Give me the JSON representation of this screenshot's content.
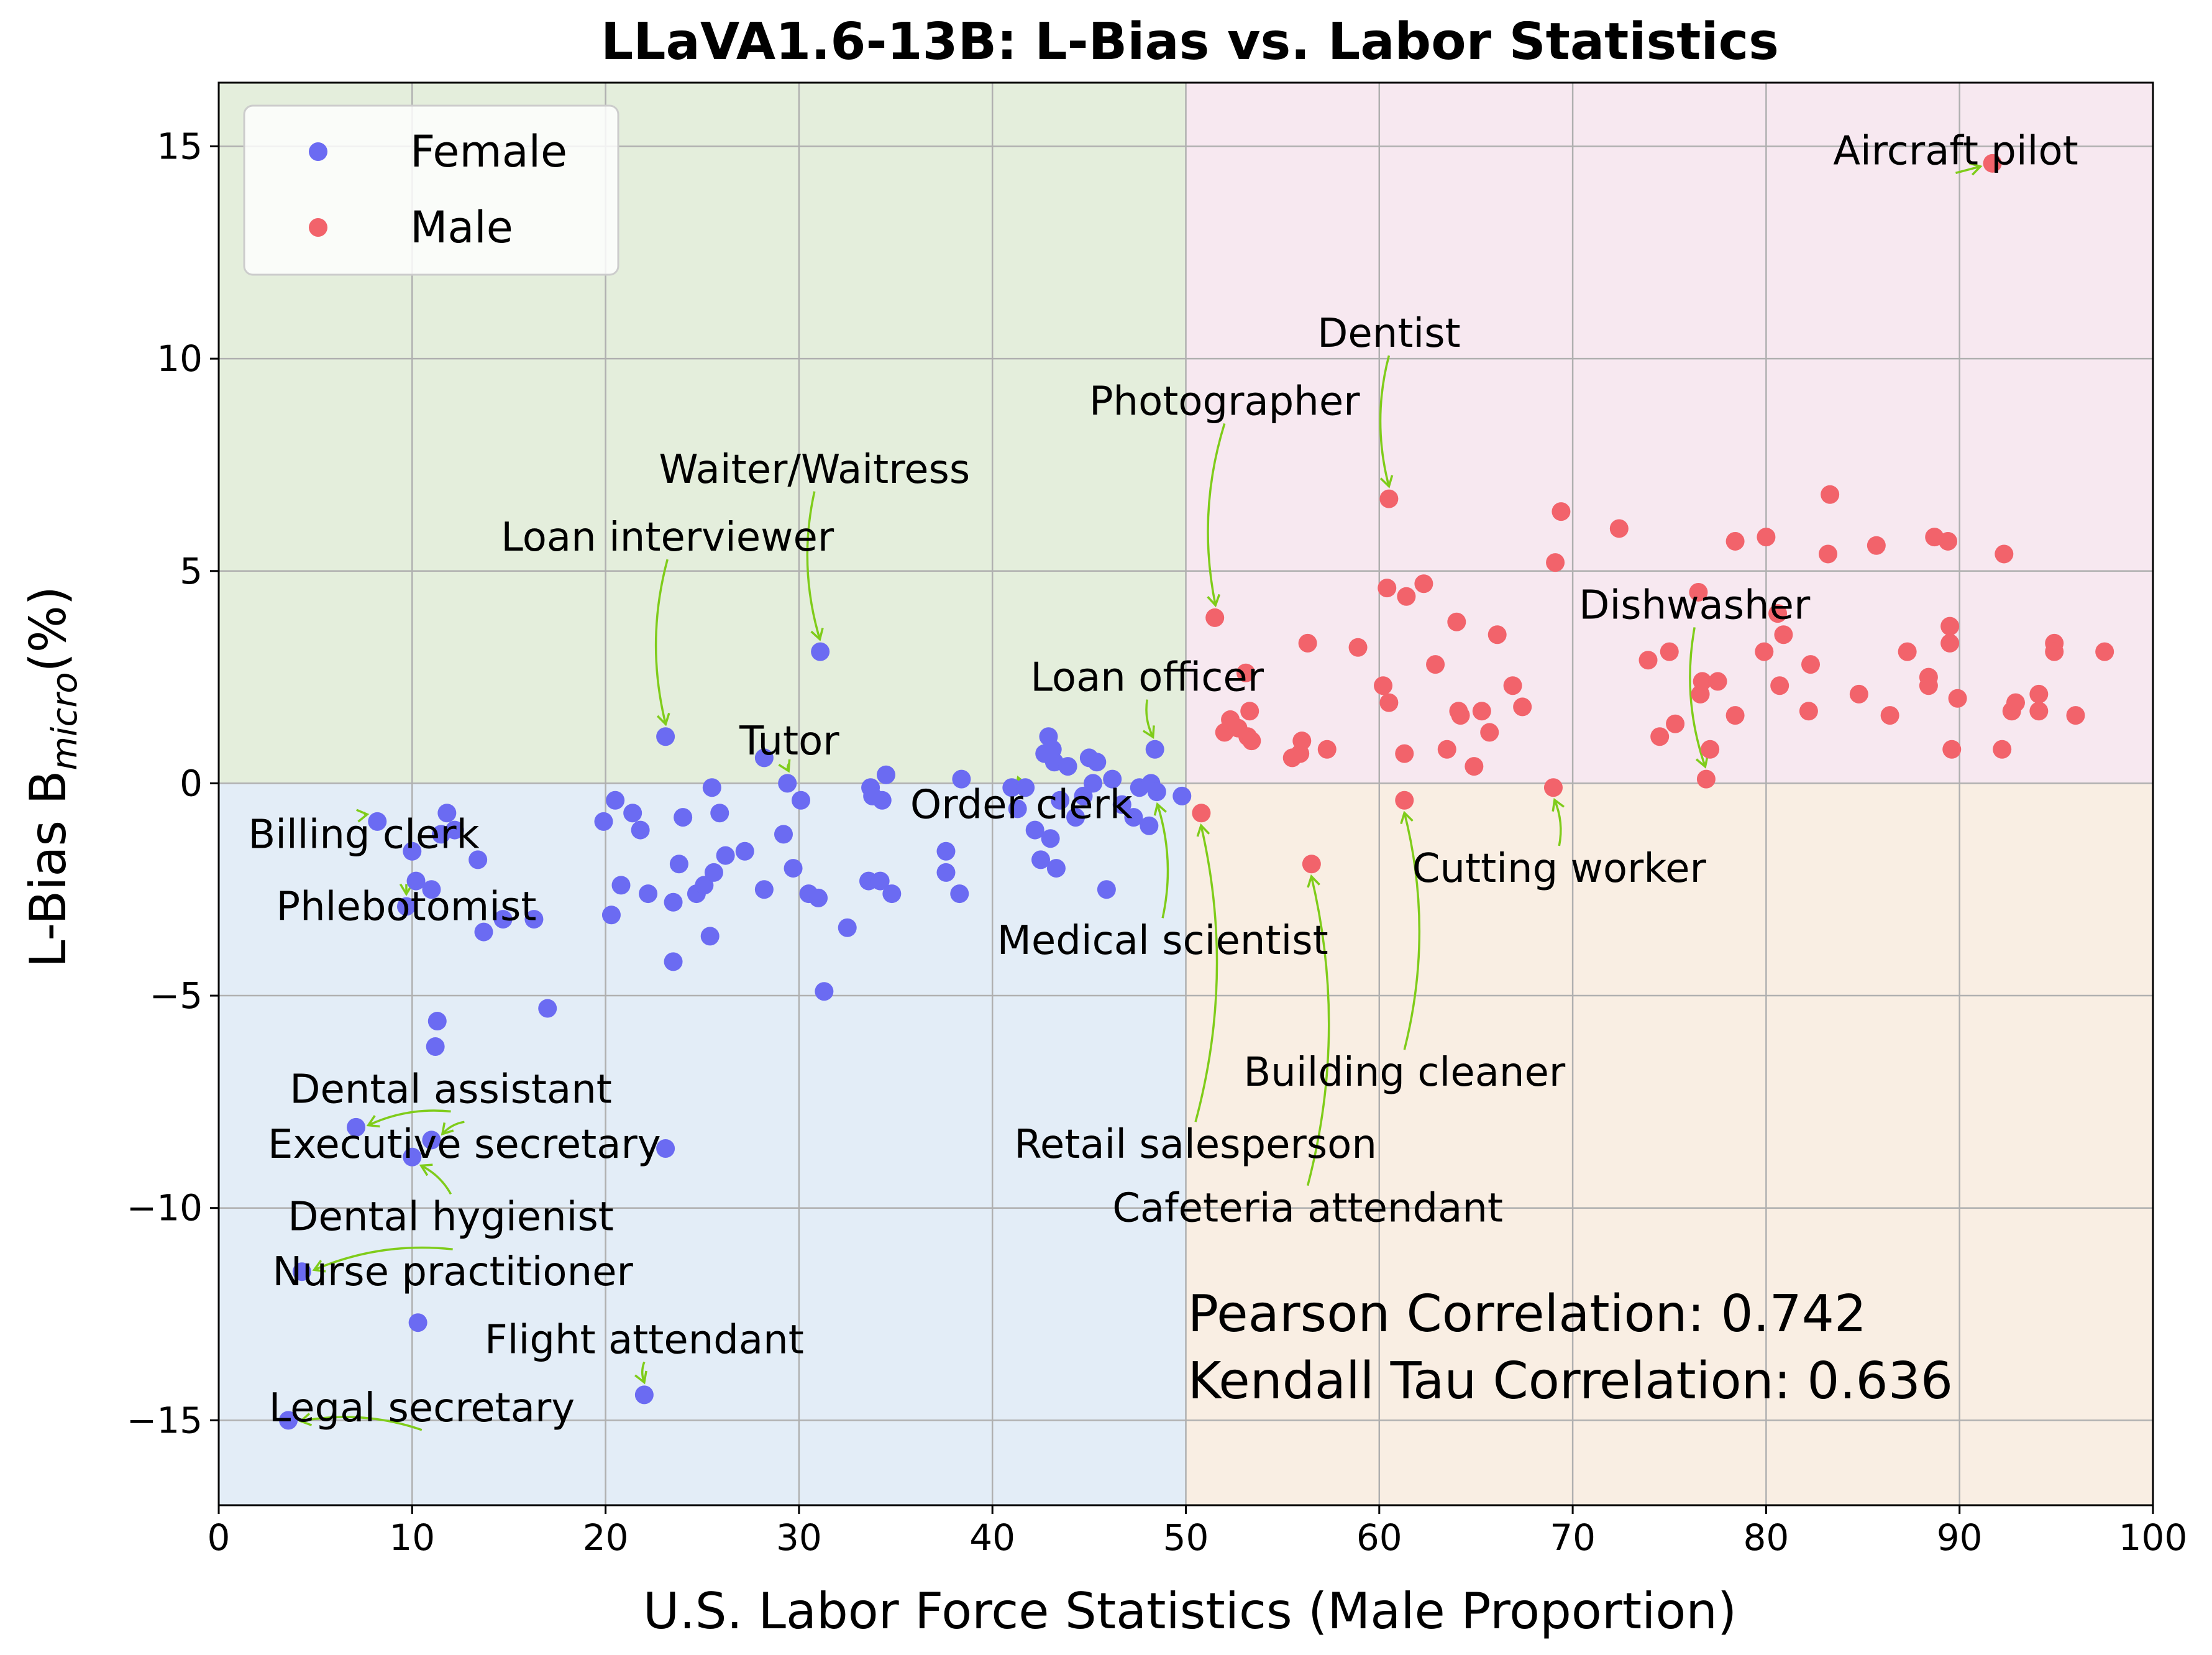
{
  "chart_data": {
    "type": "scatter",
    "title": "LLaVA1.6-13B: L-Bias vs. Labor Statistics",
    "xlabel": "U.S. Labor Force Statistics (Male Proportion)",
    "ylabel_main": "L-Bias  B",
    "ylabel_sub": "micro",
    "ylabel_tail": "(%)",
    "xlim": [
      0,
      100
    ],
    "ylim": [
      -17,
      16.5
    ],
    "xticks": [
      0,
      10,
      20,
      30,
      40,
      50,
      60,
      70,
      80,
      90,
      100
    ],
    "yticks": [
      -15,
      -10,
      -5,
      0,
      5,
      10,
      15
    ],
    "ytick_labels": [
      "−15",
      "−10",
      "−5",
      "0",
      "5",
      "10",
      "15"
    ],
    "grid": true,
    "legend_position": "top-left",
    "quadrant_colors": {
      "top_left": "#e4eedc",
      "top_right": "#f7e8f0",
      "bottom_left": "#e3edf7",
      "bottom_right": "#f9eee3"
    },
    "series": [
      {
        "name": "Female",
        "color": "#6b6bf2",
        "points": [
          [
            3.6,
            -15.0
          ],
          [
            4.3,
            -11.5
          ],
          [
            7.1,
            -8.1
          ],
          [
            10.0,
            -8.8
          ],
          [
            10.3,
            -12.7
          ],
          [
            11.0,
            -8.4
          ],
          [
            11.2,
            -6.2
          ],
          [
            11.3,
            -5.6
          ],
          [
            8.2,
            -0.9
          ],
          [
            9.7,
            -2.9
          ],
          [
            10.0,
            -1.6
          ],
          [
            10.2,
            -2.3
          ],
          [
            11.0,
            -2.5
          ],
          [
            11.5,
            -1.2
          ],
          [
            11.8,
            -0.7
          ],
          [
            12.2,
            -1.1
          ],
          [
            13.4,
            -1.8
          ],
          [
            13.7,
            -3.5
          ],
          [
            14.7,
            -3.2
          ],
          [
            16.3,
            -3.2
          ],
          [
            17.0,
            -5.3
          ],
          [
            19.9,
            -0.9
          ],
          [
            20.3,
            -3.1
          ],
          [
            20.5,
            -0.4
          ],
          [
            20.8,
            -2.4
          ],
          [
            21.4,
            -0.7
          ],
          [
            21.8,
            -1.1
          ],
          [
            22.2,
            -2.6
          ],
          [
            23.1,
            -8.6
          ],
          [
            23.1,
            1.1
          ],
          [
            23.5,
            -2.8
          ],
          [
            23.5,
            -4.2
          ],
          [
            23.8,
            -1.9
          ],
          [
            24.0,
            -0.8
          ],
          [
            24.7,
            -2.6
          ],
          [
            25.1,
            -2.4
          ],
          [
            25.4,
            -3.6
          ],
          [
            25.6,
            -2.1
          ],
          [
            25.5,
            -0.1
          ],
          [
            25.9,
            -0.7
          ],
          [
            26.2,
            -1.7
          ],
          [
            27.2,
            -1.6
          ],
          [
            28.2,
            0.6
          ],
          [
            28.2,
            -2.5
          ],
          [
            29.2,
            -1.2
          ],
          [
            29.4,
            0.0
          ],
          [
            29.7,
            -2.0
          ],
          [
            30.1,
            -0.4
          ],
          [
            30.5,
            -2.6
          ],
          [
            31.0,
            -2.7
          ],
          [
            31.1,
            3.1
          ],
          [
            31.3,
            -4.9
          ],
          [
            32.5,
            -3.4
          ],
          [
            33.6,
            -2.3
          ],
          [
            33.7,
            -0.1
          ],
          [
            33.8,
            -0.3
          ],
          [
            34.2,
            -2.3
          ],
          [
            34.3,
            -0.4
          ],
          [
            34.5,
            0.2
          ],
          [
            34.8,
            -2.6
          ],
          [
            37.6,
            -1.6
          ],
          [
            37.6,
            -2.1
          ],
          [
            38.3,
            -2.6
          ],
          [
            38.4,
            0.1
          ],
          [
            41.0,
            -0.1
          ],
          [
            41.3,
            -0.6
          ],
          [
            41.7,
            -0.1
          ],
          [
            42.2,
            -1.1
          ],
          [
            42.5,
            -1.8
          ],
          [
            42.7,
            0.7
          ],
          [
            42.9,
            1.1
          ],
          [
            43.0,
            -1.3
          ],
          [
            43.1,
            0.8
          ],
          [
            43.2,
            0.5
          ],
          [
            43.3,
            -2.0
          ],
          [
            43.5,
            -0.4
          ],
          [
            43.9,
            0.4
          ],
          [
            44.3,
            -0.8
          ],
          [
            44.7,
            -0.3
          ],
          [
            45.0,
            0.6
          ],
          [
            45.2,
            0.0
          ],
          [
            45.4,
            0.5
          ],
          [
            45.9,
            -2.5
          ],
          [
            46.2,
            0.1
          ],
          [
            46.7,
            -0.5
          ],
          [
            47.3,
            -0.8
          ],
          [
            47.6,
            -0.1
          ],
          [
            48.1,
            -1.0
          ],
          [
            48.2,
            0.0
          ],
          [
            48.4,
            0.8
          ],
          [
            48.5,
            -0.2
          ],
          [
            49.8,
            -0.3
          ],
          [
            22.0,
            -14.4
          ]
        ]
      },
      {
        "name": "Male",
        "color": "#f2636b",
        "points": [
          [
            51.5,
            3.9
          ],
          [
            52.0,
            1.2
          ],
          [
            52.3,
            1.5
          ],
          [
            52.7,
            1.3
          ],
          [
            53.1,
            2.6
          ],
          [
            53.2,
            1.1
          ],
          [
            53.3,
            1.7
          ],
          [
            53.4,
            1.0
          ],
          [
            55.5,
            0.6
          ],
          [
            55.9,
            0.7
          ],
          [
            56.0,
            1.0
          ],
          [
            56.3,
            3.3
          ],
          [
            57.3,
            0.8
          ],
          [
            58.9,
            3.2
          ],
          [
            60.2,
            2.3
          ],
          [
            60.4,
            4.6
          ],
          [
            60.5,
            1.9
          ],
          [
            60.5,
            6.7
          ],
          [
            61.3,
            0.7
          ],
          [
            61.4,
            4.4
          ],
          [
            62.3,
            4.7
          ],
          [
            62.9,
            2.8
          ],
          [
            63.5,
            0.8
          ],
          [
            64.0,
            3.8
          ],
          [
            64.1,
            1.7
          ],
          [
            64.2,
            1.6
          ],
          [
            64.9,
            0.4
          ],
          [
            65.3,
            1.7
          ],
          [
            65.7,
            1.2
          ],
          [
            66.1,
            3.5
          ],
          [
            66.9,
            2.3
          ],
          [
            67.4,
            1.8
          ],
          [
            69.1,
            5.2
          ],
          [
            69.4,
            6.4
          ],
          [
            72.4,
            6.0
          ],
          [
            73.9,
            2.9
          ],
          [
            74.5,
            1.1
          ],
          [
            75.0,
            3.1
          ],
          [
            75.3,
            1.4
          ],
          [
            76.5,
            4.5
          ],
          [
            76.6,
            2.1
          ],
          [
            76.7,
            2.4
          ],
          [
            77.1,
            0.8
          ],
          [
            77.5,
            2.4
          ],
          [
            78.4,
            1.6
          ],
          [
            78.4,
            5.7
          ],
          [
            79.9,
            3.1
          ],
          [
            80.0,
            5.8
          ],
          [
            80.6,
            4.0
          ],
          [
            80.7,
            2.3
          ],
          [
            80.9,
            3.5
          ],
          [
            82.2,
            1.7
          ],
          [
            82.3,
            2.8
          ],
          [
            83.2,
            5.4
          ],
          [
            83.3,
            6.8
          ],
          [
            85.7,
            5.6
          ],
          [
            84.8,
            2.1
          ],
          [
            86.4,
            1.6
          ],
          [
            87.3,
            3.1
          ],
          [
            88.4,
            2.5
          ],
          [
            88.4,
            2.3
          ],
          [
            88.7,
            5.8
          ],
          [
            89.4,
            5.7
          ],
          [
            89.5,
            3.7
          ],
          [
            89.5,
            3.3
          ],
          [
            89.6,
            0.8
          ],
          [
            89.9,
            2.0
          ],
          [
            92.2,
            0.8
          ],
          [
            92.3,
            5.4
          ],
          [
            92.7,
            1.7
          ],
          [
            92.9,
            1.9
          ],
          [
            94.1,
            2.1
          ],
          [
            94.1,
            1.7
          ],
          [
            94.9,
            3.3
          ],
          [
            94.9,
            3.1
          ],
          [
            96.0,
            1.6
          ],
          [
            97.5,
            3.1
          ],
          [
            91.7,
            14.6
          ],
          [
            76.9,
            0.1
          ],
          [
            69.0,
            -0.1
          ],
          [
            61.3,
            -0.4
          ],
          [
            56.5,
            -1.9
          ],
          [
            50.8,
            -0.7
          ]
        ]
      }
    ],
    "annotations": [
      {
        "text": "Aircraft pilot",
        "text_x": 89.8,
        "text_y": 14.9,
        "anchor": "middle",
        "arrow": {
          "to": [
            91.7,
            14.6
          ],
          "path": "straight"
        }
      },
      {
        "text": "Dentist",
        "text_x": 60.5,
        "text_y": 10.6,
        "anchor": "middle",
        "arrow": {
          "to": [
            60.5,
            6.7
          ],
          "curve": true
        }
      },
      {
        "text": "Photographer",
        "text_x": 52.0,
        "text_y": 9.0,
        "anchor": "middle",
        "arrow": {
          "to": [
            51.5,
            3.9
          ],
          "curve": true
        }
      },
      {
        "text": "Waiter/Waitress",
        "text_x": 30.8,
        "text_y": 7.4,
        "anchor": "middle",
        "arrow": {
          "to": [
            31.1,
            3.1
          ],
          "curve": true
        }
      },
      {
        "text": "Loan interviewer",
        "text_x": 23.2,
        "text_y": 5.8,
        "anchor": "middle",
        "arrow": {
          "to": [
            23.1,
            1.1
          ],
          "curve": true
        }
      },
      {
        "text": "Dishwasher",
        "text_x": 76.3,
        "text_y": 4.2,
        "anchor": "middle",
        "arrow": {
          "to": [
            76.9,
            0.1
          ],
          "curve": true
        }
      },
      {
        "text": "Loan officer",
        "text_x": 48.0,
        "text_y": 2.5,
        "anchor": "middle",
        "arrow": {
          "to": [
            48.4,
            0.8
          ],
          "curve": true
        }
      },
      {
        "text": "Tutor",
        "text_x": 29.5,
        "text_y": 1.0,
        "anchor": "middle",
        "arrow": {
          "to": [
            29.4,
            0.0
          ],
          "curve": true
        }
      },
      {
        "text": "Order clerk",
        "text_x": 41.5,
        "text_y": -0.5,
        "anchor": "middle",
        "arrow": {
          "to": [
            41.7,
            -0.1
          ],
          "curve": true
        }
      },
      {
        "text": "Billing clerk",
        "text_x": 7.5,
        "text_y": -1.2,
        "anchor": "middle",
        "arrow": {
          "to": [
            8.2,
            -0.9
          ],
          "curve": true
        }
      },
      {
        "text": "Cutting worker",
        "text_x": 69.3,
        "text_y": -2.0,
        "anchor": "middle",
        "arrow": {
          "to": [
            69.0,
            -0.1
          ],
          "curve": true
        }
      },
      {
        "text": "Phlebotomist",
        "text_x": 9.7,
        "text_y": -2.9,
        "anchor": "middle",
        "arrow": {
          "to": [
            9.7,
            -2.9
          ],
          "curve": false
        }
      },
      {
        "text": "Medical scientist",
        "text_x": 48.8,
        "text_y": -3.7,
        "anchor": "middle",
        "arrow": {
          "to": [
            48.5,
            -0.2
          ],
          "curve": true
        }
      },
      {
        "text": "Building cleaner",
        "text_x": 61.3,
        "text_y": -6.8,
        "anchor": "middle",
        "arrow": {
          "to": [
            61.3,
            -0.4
          ],
          "curve": true
        }
      },
      {
        "text": "Dental assistant",
        "text_x": 12.0,
        "text_y": -7.2,
        "anchor": "middle",
        "arrow": {
          "to": [
            7.1,
            -8.1
          ],
          "curve": true
        }
      },
      {
        "text": "Executive secretary",
        "text_x": 12.7,
        "text_y": -8.5,
        "anchor": "middle",
        "arrow": {
          "to": [
            11.0,
            -8.4
          ],
          "curve": true
        }
      },
      {
        "text": "Retail salesperson",
        "text_x": 50.5,
        "text_y": -8.5,
        "anchor": "middle",
        "arrow": {
          "to": [
            50.8,
            -0.7
          ],
          "curve": true
        }
      },
      {
        "text": "Dental hygienist",
        "text_x": 12.0,
        "text_y": -10.2,
        "anchor": "middle",
        "arrow": {
          "to": [
            10.0,
            -8.8
          ],
          "curve": true
        }
      },
      {
        "text": "Cafeteria attendant",
        "text_x": 56.3,
        "text_y": -10.0,
        "anchor": "middle",
        "arrow": {
          "to": [
            56.5,
            -1.9
          ],
          "curve": true
        }
      },
      {
        "text": "Nurse practitioner",
        "text_x": 12.1,
        "text_y": -11.5,
        "anchor": "middle",
        "arrow": {
          "to": [
            4.3,
            -11.5
          ],
          "curve": true
        }
      },
      {
        "text": "Flight attendant",
        "text_x": 22.0,
        "text_y": -13.1,
        "anchor": "middle",
        "arrow": {
          "to": [
            22.0,
            -14.4
          ],
          "curve": true
        }
      },
      {
        "text": "Legal secretary",
        "text_x": 10.5,
        "text_y": -14.7,
        "anchor": "middle",
        "arrow": {
          "to": [
            3.6,
            -15.0
          ],
          "curve": true
        }
      }
    ],
    "stats": [
      "Pearson Correlation: 0.742",
      "Kendall Tau Correlation: 0.636"
    ]
  }
}
